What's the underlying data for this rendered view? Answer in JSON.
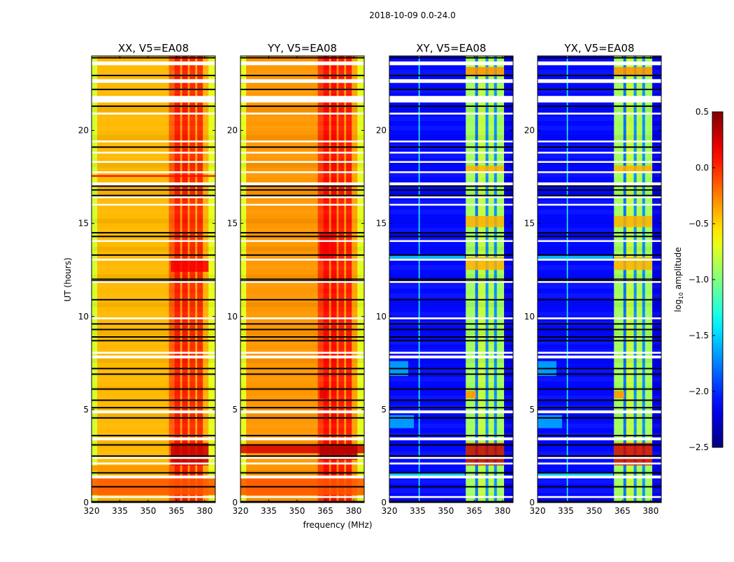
{
  "chart_data": {
    "type": "heatmap",
    "title": "2018-10-09 0.0-24.0",
    "xlabel": "frequency (MHz)",
    "ylabel": "UT (hours)",
    "xlim": [
      320,
      385.6
    ],
    "ylim": [
      0,
      24
    ],
    "xticks": [
      320,
      335,
      350,
      365,
      380
    ],
    "xtick_labels": [
      "320",
      "335",
      "350",
      "365",
      "380"
    ],
    "yticks": [
      0,
      5,
      10,
      15,
      20
    ],
    "ytick_labels": [
      "0",
      "5",
      "10",
      "15",
      "20"
    ],
    "colormap": "jet",
    "colorbar": {
      "label_main": "log",
      "label_sub": "10",
      "label_rest": " amplitude",
      "range": [
        -2.5,
        0.5
      ],
      "ticks": [
        -2.5,
        -2.0,
        -1.5,
        -1.0,
        -0.5,
        0.0,
        0.5
      ],
      "tick_labels": [
        "−2.5",
        "−2.0",
        "−1.5",
        "−1.0",
        "−0.5",
        "0.0",
        "0.5"
      ]
    },
    "flagged_rows_hours": [
      [
        0.25,
        0.35
      ],
      [
        1.3,
        1.45
      ],
      [
        2.05,
        2.15
      ],
      [
        2.35,
        2.45
      ],
      [
        3.35,
        3.5
      ],
      [
        4.8,
        4.95
      ],
      [
        7.75,
        7.9
      ],
      [
        8.0,
        8.1
      ],
      [
        9.85,
        9.95
      ],
      [
        11.85,
        11.9
      ],
      [
        13.0,
        13.1
      ],
      [
        14.05,
        14.1
      ],
      [
        16.0,
        16.05
      ],
      [
        16.4,
        16.45
      ],
      [
        17.05,
        17.2
      ],
      [
        17.75,
        17.8
      ],
      [
        18.3,
        18.35
      ],
      [
        18.8,
        18.85
      ],
      [
        19.4,
        19.45
      ],
      [
        20.85,
        20.95
      ],
      [
        21.5,
        21.85
      ],
      [
        22.55,
        22.75
      ],
      [
        23.5,
        23.7
      ]
    ],
    "zero_rows_hours": [
      0.05,
      0.3,
      0.85,
      1.6,
      2.5,
      3.1,
      3.6,
      4.55,
      5.1,
      5.5,
      6.1,
      6.9,
      7.2,
      8.7,
      8.9,
      9.3,
      9.6,
      10.9,
      11.9,
      12.0,
      13.3,
      14.3,
      14.5,
      16.5,
      16.8,
      17.0,
      19.1,
      21.3,
      22.2,
      22.95,
      23.9
    ],
    "panels": [
      {
        "title": "XX, V5=EA08",
        "bands": [
          [
            320,
            323,
            -0.75
          ],
          [
            323,
            361,
            -0.42
          ],
          [
            361,
            364,
            -0.15
          ],
          [
            364,
            367,
            0.05
          ],
          [
            367,
            368,
            -0.35
          ],
          [
            368,
            371,
            0.05
          ],
          [
            371,
            372,
            -0.35
          ],
          [
            372,
            375,
            0.0
          ],
          [
            375,
            376,
            -0.4
          ],
          [
            376,
            379,
            0.0
          ],
          [
            379,
            382,
            -0.4
          ],
          [
            382,
            385.6,
            -0.7
          ]
        ],
        "patches": [
          [
            0.4,
            1.3,
            320,
            385.6,
            -0.12
          ],
          [
            2.0,
            3.2,
            362,
            382,
            0.3
          ],
          [
            1.7,
            2.0,
            320,
            361,
            -0.3
          ],
          [
            12.4,
            13.0,
            362,
            382,
            0.15
          ],
          [
            17.5,
            17.6,
            320,
            385.6,
            0.1
          ]
        ]
      },
      {
        "title": "YY, V5=EA08",
        "bands": [
          [
            320,
            323,
            -0.7
          ],
          [
            323,
            361,
            -0.32
          ],
          [
            361,
            364,
            -0.05
          ],
          [
            364,
            367,
            0.1
          ],
          [
            367,
            368,
            -0.3
          ],
          [
            368,
            371,
            0.1
          ],
          [
            371,
            372,
            -0.3
          ],
          [
            372,
            375,
            0.05
          ],
          [
            375,
            376,
            -0.35
          ],
          [
            376,
            379,
            0.05
          ],
          [
            379,
            382,
            -0.35
          ],
          [
            382,
            385.6,
            -0.7
          ]
        ],
        "patches": [
          [
            0.4,
            1.3,
            320,
            385.6,
            -0.12
          ],
          [
            2.65,
            3.1,
            320,
            385.6,
            0.25
          ],
          [
            2.3,
            3.1,
            362,
            382,
            0.35
          ],
          [
            13.0,
            14.5,
            362,
            369,
            0.15
          ],
          [
            5.6,
            6.2,
            362,
            366,
            0.2
          ]
        ]
      },
      {
        "title": "XY, V5=EA08",
        "bands": [
          [
            320,
            335.5,
            -2.1
          ],
          [
            335.5,
            336.1,
            -1.3
          ],
          [
            336.1,
            360.5,
            -2.1
          ],
          [
            360.5,
            365.5,
            -0.9
          ],
          [
            365.5,
            367,
            -1.8
          ],
          [
            367,
            371,
            -0.8
          ],
          [
            371,
            372.5,
            -1.7
          ],
          [
            372.5,
            375.5,
            -0.85
          ],
          [
            375.5,
            377,
            -1.7
          ],
          [
            377,
            380.8,
            -0.9
          ],
          [
            380.8,
            385.6,
            -2.2
          ]
        ],
        "patches": [
          [
            2.0,
            3.2,
            360.5,
            380.8,
            0.3
          ],
          [
            5.6,
            6.0,
            360.5,
            366,
            -0.3
          ],
          [
            12.5,
            13.2,
            360.5,
            380.8,
            -0.4
          ],
          [
            14.8,
            15.4,
            360.5,
            380.8,
            -0.4
          ],
          [
            17.7,
            18.1,
            360.5,
            380.8,
            -0.4
          ],
          [
            22.9,
            23.4,
            360.5,
            380.8,
            -0.3
          ],
          [
            4.0,
            4.7,
            320,
            333,
            -1.6
          ],
          [
            6.8,
            7.6,
            320,
            330,
            -1.6
          ],
          [
            1.45,
            1.6,
            320,
            360,
            -1.4
          ],
          [
            13.0,
            13.3,
            320,
            360,
            -1.5
          ]
        ]
      },
      {
        "title": "YX, V5=EA08",
        "bands": [
          [
            320,
            335.5,
            -2.1
          ],
          [
            335.5,
            336.1,
            -1.3
          ],
          [
            336.1,
            360.5,
            -2.1
          ],
          [
            360.5,
            365.5,
            -0.9
          ],
          [
            365.5,
            367,
            -1.8
          ],
          [
            367,
            371,
            -0.8
          ],
          [
            371,
            372.5,
            -1.7
          ],
          [
            372.5,
            375.5,
            -0.85
          ],
          [
            375.5,
            377,
            -1.7
          ],
          [
            377,
            380.8,
            -0.9
          ],
          [
            380.8,
            385.6,
            -2.2
          ]
        ],
        "patches": [
          [
            2.0,
            3.2,
            360.5,
            380.8,
            0.25
          ],
          [
            5.6,
            6.0,
            360.5,
            366,
            -0.3
          ],
          [
            12.5,
            13.2,
            360.5,
            380.8,
            -0.4
          ],
          [
            14.8,
            15.4,
            360.5,
            380.8,
            -0.4
          ],
          [
            17.7,
            18.1,
            360.5,
            380.8,
            -0.4
          ],
          [
            22.9,
            23.4,
            360.5,
            380.8,
            -0.3
          ],
          [
            4.0,
            4.7,
            320,
            333,
            -1.6
          ],
          [
            6.8,
            7.6,
            320,
            330,
            -1.6
          ],
          [
            1.45,
            1.6,
            320,
            360,
            -1.4
          ],
          [
            13.0,
            13.3,
            320,
            360,
            -1.5
          ]
        ]
      }
    ]
  }
}
